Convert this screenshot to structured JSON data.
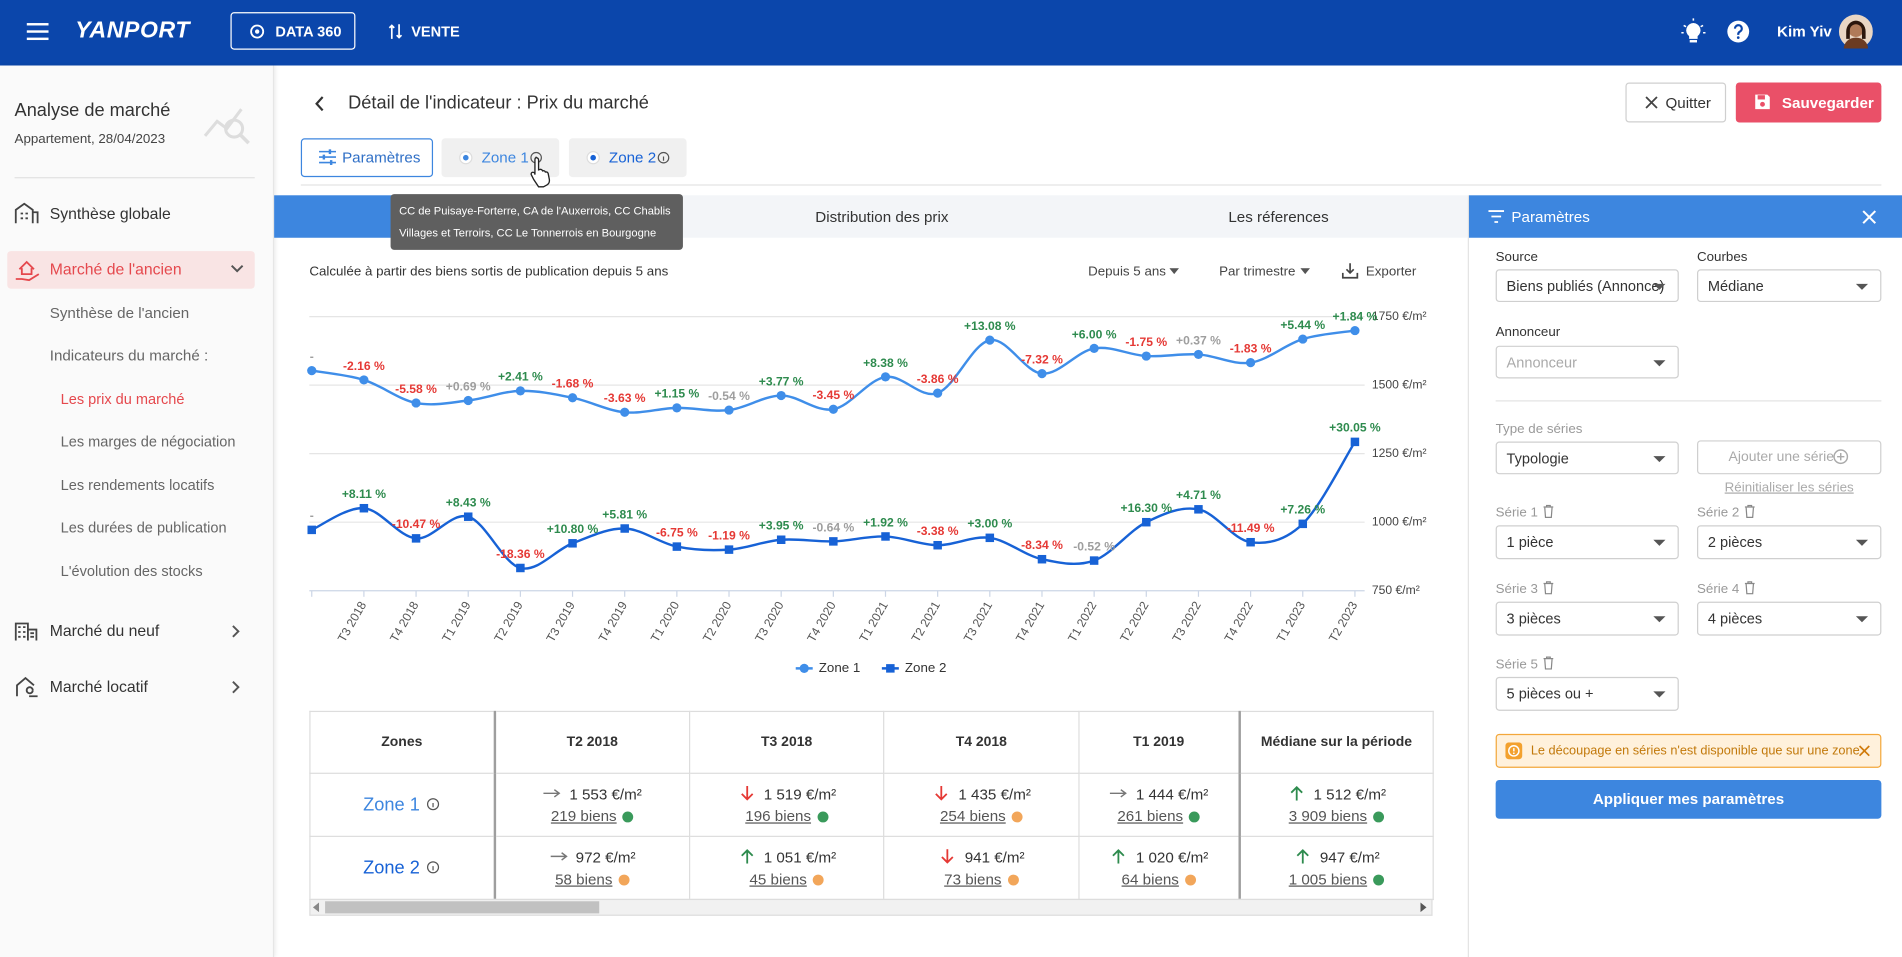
{
  "nav": {
    "logo": "YANPORT",
    "data360": "DATA 360",
    "vente": "VENTE",
    "user": "Kim Yiv"
  },
  "sidebar": {
    "title": "Analyse de marché",
    "subtitle": "Appartement, 28/04/2023",
    "synthese": "Synthèse globale",
    "ancien": "Marché de l'ancien",
    "synthese_ancien": "Synthèse de l'ancien",
    "indicateurs": "Indicateurs du marché :",
    "links": [
      "Les prix du marché",
      "Les marges de négociation",
      "Les rendements locatifs",
      "Les durées de publication",
      "L'évolution des stocks"
    ],
    "neuf": "Marché du neuf",
    "locatif": "Marché locatif"
  },
  "header": {
    "title": "Détail de l'indicateur : Prix du marché",
    "quit": "Quitter",
    "save": "Sauvegarder"
  },
  "chips": {
    "params": "Paramètres",
    "zone1": "Zone 1",
    "zone2": "Zone 2"
  },
  "tooltip": [
    "CC de Puisaye-Forterre, CA de l'Auxerrois, CC Chablis",
    "Villages et Terroirs, CC Le Tonnerrois en Bourgogne"
  ],
  "tabs": [
    "Distribution des prix",
    "Les réferences"
  ],
  "toolbar": {
    "note": "Calculée à partir des biens sortis de publication depuis 5 ans",
    "period": "Depuis 5 ans",
    "step": "Par trimestre",
    "export": "Exporter"
  },
  "chart_data": {
    "type": "line",
    "categories": [
      null,
      "T3 2018",
      "T4 2018",
      "T1 2019",
      "T2 2019",
      "T3 2019",
      "T4 2019",
      "T1 2020",
      "T2 2020",
      "T3 2020",
      "T4 2020",
      "T1 2021",
      "T2 2021",
      "T3 2021",
      "T4 2021",
      "T1 2022",
      "T2 2022",
      "T3 2022",
      "T4 2022",
      "T1 2023",
      "T2 2023"
    ],
    "ylim": [
      750,
      1750
    ],
    "yticks": [
      {
        "value": 750,
        "label": "750 €/m²"
      },
      {
        "value": 1000,
        "label": "1000 €/m²"
      },
      {
        "value": 1250,
        "label": "1250 €/m²"
      },
      {
        "value": 1500,
        "label": "1500 €/m²"
      },
      {
        "value": 1750,
        "label": "1750 €/m²"
      }
    ],
    "grid": true,
    "change_colors": {
      "up": "#2e8b4e",
      "down": "#e53935",
      "neutral": "#9e9e9e"
    },
    "series": [
      {
        "name": "Zone 1",
        "color": "#3f8ee9",
        "marker": "circle",
        "values": [
          1553,
          1519,
          1435,
          1444,
          1479,
          1454,
          1401,
          1417,
          1409,
          1462,
          1412,
          1530,
          1471,
          1664,
          1542,
          1634,
          1606,
          1612,
          1582,
          1668,
          1699
        ],
        "changes": [
          "-",
          "-2.16 %",
          "-5.58 %",
          "+0.69 %",
          "+2.41 %",
          "-1.68 %",
          "-3.63 %",
          "+1.15 %",
          "-0.54 %",
          "+3.77 %",
          "-3.45 %",
          "+8.38 %",
          "-3.86 %",
          "+13.08 %",
          "-7.32 %",
          "+6.00 %",
          "-1.75 %",
          "+0.37 %",
          "-1.83 %",
          "+5.44 %",
          "+1.84 %"
        ]
      },
      {
        "name": "Zone 2",
        "color": "#1762d6",
        "marker": "square",
        "values": [
          972,
          1051,
          941,
          1020,
          833,
          923,
          977,
          911,
          900,
          936,
          930,
          948,
          916,
          943,
          865,
          860,
          1000,
          1047,
          927,
          994,
          1293
        ],
        "changes": [
          "-",
          "+8.11 %",
          "-10.47 %",
          "+8.43 %",
          "-18.36 %",
          "+10.80 %",
          "+5.81 %",
          "-6.75 %",
          "-1.19 %",
          "+3.95 %",
          "-0.64 %",
          "+1.92 %",
          "-3.38 %",
          "+3.00 %",
          "-8.34 %",
          "-0.52 %",
          "+16.30 %",
          "+4.71 %",
          "-11.49 %",
          "+7.26 %",
          "+30.05 %"
        ]
      }
    ]
  },
  "table": {
    "columns": [
      "Zones",
      "T2 2018",
      "T3 2018",
      "T4 2018",
      "T1 2019",
      "Médiane sur la période"
    ],
    "rows": [
      {
        "zone": "Zone 1",
        "cells": [
          {
            "price": "1 553 €/m²",
            "count": "219 biens",
            "trend": "flat",
            "dot": "green"
          },
          {
            "price": "1 519 €/m²",
            "count": "196 biens",
            "trend": "down",
            "dot": "green"
          },
          {
            "price": "1 435 €/m²",
            "count": "254 biens",
            "trend": "down",
            "dot": "orange"
          },
          {
            "price": "1 444 €/m²",
            "count": "261 biens",
            "trend": "flat",
            "dot": "green"
          },
          {
            "price": "1 512 €/m²",
            "count": "3 909 biens",
            "trend": "up",
            "dot": "green"
          }
        ]
      },
      {
        "zone": "Zone 2",
        "cells": [
          {
            "price": "972 €/m²",
            "count": "58 biens",
            "trend": "flat",
            "dot": "orange"
          },
          {
            "price": "1 051 €/m²",
            "count": "45 biens",
            "trend": "up",
            "dot": "orange"
          },
          {
            "price": "941 €/m²",
            "count": "73 biens",
            "trend": "down",
            "dot": "orange"
          },
          {
            "price": "1 020 €/m²",
            "count": "64 biens",
            "trend": "up",
            "dot": "orange"
          },
          {
            "price": "947 €/m²",
            "count": "1 005 biens",
            "trend": "up",
            "dot": "green"
          }
        ]
      }
    ]
  },
  "panel": {
    "title": "Paramètres",
    "source_label": "Source",
    "source": "Biens publiés (Annonce)",
    "curves_label": "Courbes",
    "curves": "Médiane",
    "advertiser_label": "Annonceur",
    "advertiser": "Annonceur",
    "series_type_label": "Type de séries",
    "series_type": "Typologie",
    "add_series": "Ajouter une série",
    "reset": "Réinitialiser les séries",
    "series": [
      {
        "label": "Série 1",
        "value": "1 pièce"
      },
      {
        "label": "Série 2",
        "value": "2 pièces"
      },
      {
        "label": "Série 3",
        "value": "3 pièces"
      },
      {
        "label": "Série 4",
        "value": "4 pièces"
      },
      {
        "label": "Série 5",
        "value": "5 pièces ou +"
      }
    ],
    "warning": "Le découpage en séries n'est disponible que sur une zone.",
    "apply": "Appliquer mes paramètres"
  }
}
